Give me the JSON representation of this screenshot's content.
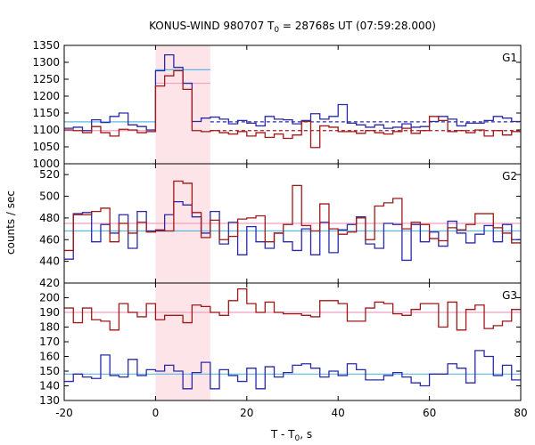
{
  "chart_data": {
    "type": "line",
    "title_main": "KONUS-WIND 980707 T",
    "title_sub": "0",
    "title_rest": " = 28768s UT (07:59:28.000)",
    "xlabel_main": "T - T",
    "xlabel_sub": "0",
    "xlabel_rest": ", s",
    "ylabel": "counts / sec",
    "xlim": [
      -20,
      80
    ],
    "x_ticks": [
      "-20",
      "0",
      "20",
      "40",
      "60",
      "80"
    ],
    "highlight_interval": [
      0,
      12
    ],
    "colors": {
      "blue": "#2a2aa8",
      "red": "#a01818",
      "cyan": "#5ab8e6",
      "pink": "#f0a0c0",
      "highlight": "#fde4e8"
    },
    "bin_edges": [
      -20,
      -18,
      -16,
      -14,
      -12,
      -10,
      -8,
      -6,
      -4,
      -2,
      0,
      2,
      4,
      6,
      8,
      10,
      12,
      14,
      16,
      18,
      20,
      22,
      24,
      26,
      28,
      30,
      32,
      34,
      36,
      38,
      40,
      42,
      44,
      46,
      48,
      50,
      52,
      54,
      56,
      58,
      60,
      62,
      64,
      66,
      68,
      70,
      72,
      74,
      76,
      78,
      80
    ],
    "panels": [
      {
        "label": "G1",
        "ylim": [
          1000,
          1350
        ],
        "yticks": [
          "1000",
          "1050",
          "1100",
          "1150",
          "1200",
          "1250",
          "1300",
          "1350"
        ],
        "series": [
          {
            "color": "blue",
            "values": [
              1105,
              1108,
              1098,
              1130,
              1122,
              1140,
              1150,
              1115,
              1110,
              1100,
              1275,
              1322,
              1285,
              1238,
              1125,
              1135,
              1138,
              1132,
              1118,
              1128,
              1120,
              1112,
              1140,
              1132,
              1130,
              1118,
              1128,
              1148,
              1132,
              1140,
              1175,
              1120,
              1115,
              1108,
              1115,
              1105,
              1108,
              1118,
              1108,
              1110,
              1125,
              1140,
              1132,
              1112,
              1120,
              1120,
              1128,
              1140,
              1135,
              1125
            ]
          },
          {
            "color": "red",
            "values": [
              1100,
              1098,
              1092,
              1110,
              1092,
              1082,
              1102,
              1100,
              1092,
              1095,
              1230,
              1260,
              1275,
              1220,
              1098,
              1095,
              1098,
              1092,
              1088,
              1095,
              1082,
              1092,
              1078,
              1088,
              1075,
              1085,
              1125,
              1048,
              1112,
              1108,
              1095,
              1095,
              1090,
              1098,
              1092,
              1088,
              1095,
              1105,
              1090,
              1098,
              1140,
              1128,
              1095,
              1098,
              1092,
              1100,
              1082,
              1098,
              1085,
              1095
            ]
          }
        ],
        "fit_lines": [
          {
            "color": "cyan",
            "style": "solid",
            "x": [
              -20,
              0
            ],
            "y": 1124
          },
          {
            "color": "cyan",
            "style": "solid",
            "x": [
              0,
              12
            ],
            "y": 1278
          },
          {
            "color": "pink",
            "style": "solid",
            "x": [
              -20,
              0
            ],
            "y": 1098
          },
          {
            "color": "pink",
            "style": "solid",
            "x": [
              0,
              12
            ],
            "y": 1238
          },
          {
            "color": "blue",
            "style": "dashed",
            "x": [
              12,
              80
            ],
            "y": 1124
          },
          {
            "color": "red",
            "style": "dashed",
            "x": [
              12,
              80
            ],
            "y": 1098
          }
        ]
      },
      {
        "label": "G2",
        "ylim": [
          420,
          530
        ],
        "yticks": [
          "420",
          "440",
          "460",
          "480",
          "500",
          "520"
        ],
        "series": [
          {
            "color": "blue",
            "values": [
              442,
              484,
              485,
              458,
              474,
              466,
              483,
              452,
              486,
              468,
              468,
              483,
              495,
              492,
              481,
              466,
              486,
              456,
              476,
              446,
              472,
              458,
              452,
              466,
              458,
              450,
              470,
              446,
              476,
              448,
              469,
              474,
              481,
              456,
              452,
              475,
              474,
              441,
              474,
              458,
              467,
              454,
              477,
              466,
              457,
              465,
              473,
              458,
              474,
              460
            ]
          },
          {
            "color": "red",
            "values": [
              450,
              483,
              483,
              486,
              489,
              458,
              475,
              466,
              476,
              467,
              469,
              468,
              514,
              512,
              485,
              462,
              478,
              460,
              463,
              479,
              480,
              482,
              458,
              466,
              474,
              510,
              473,
              468,
              493,
              470,
              465,
              467,
              480,
              460,
              491,
              494,
              498,
              470,
              476,
              474,
              461,
              459,
              471,
              469,
              474,
              484,
              484,
              471,
              466,
              457
            ]
          }
        ],
        "fit_lines": [
          {
            "color": "cyan",
            "style": "solid",
            "x": [
              -20,
              80
            ],
            "y": 468
          },
          {
            "color": "pink",
            "style": "solid",
            "x": [
              -20,
              80
            ],
            "y": 475
          }
        ]
      },
      {
        "label": "G3",
        "ylim": [
          130,
          210
        ],
        "yticks": [
          "130",
          "140",
          "150",
          "160",
          "170",
          "180",
          "190",
          "200"
        ],
        "series": [
          {
            "color": "blue",
            "values": [
              143,
              148,
              146,
              145,
              161,
              147,
              146,
              158,
              147,
              151,
              150,
              154,
              150,
              138,
              149,
              156,
              138,
              151,
              147,
              143,
              152,
              138,
              153,
              146,
              149,
              154,
              155,
              152,
              146,
              150,
              147,
              155,
              151,
              144,
              144,
              147,
              149,
              146,
              142,
              140,
              148,
              148,
              155,
              152,
              142,
              164,
              160,
              147,
              154,
              144
            ]
          },
          {
            "color": "red",
            "values": [
              193,
              183,
              193,
              185,
              184,
              178,
              196,
              190,
              187,
              196,
              185,
              188,
              188,
              183,
              195,
              194,
              190,
              188,
              198,
              206,
              196,
              190,
              197,
              190,
              189,
              189,
              188,
              187,
              198,
              198,
              196,
              184,
              184,
              193,
              197,
              196,
              189,
              188,
              192,
              196,
              196,
              180,
              197,
              178,
              192,
              195,
              179,
              181,
              184,
              192
            ]
          }
        ],
        "fit_lines": [
          {
            "color": "cyan",
            "style": "solid",
            "x": [
              -20,
              80
            ],
            "y": 148
          },
          {
            "color": "pink",
            "style": "solid",
            "x": [
              -20,
              80
            ],
            "y": 190
          }
        ]
      }
    ]
  }
}
